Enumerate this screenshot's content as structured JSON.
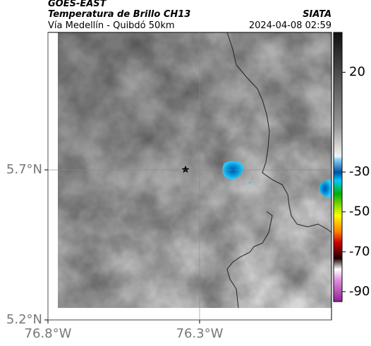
{
  "header": {
    "product": "GOES-EAST",
    "title": "Temperatura de Brillo CH13",
    "source": "SIATA",
    "subtitle": "Vía Medellín - Quibdó 50km",
    "datetime": "2024-04-08 02:59"
  },
  "map": {
    "xlim": [
      -76.8,
      -75.865
    ],
    "ylim": [
      5.2,
      6.158
    ],
    "xticks": [
      {
        "value": -76.8,
        "label": "76.8°W"
      },
      {
        "value": -76.3,
        "label": "76.3°W"
      }
    ],
    "yticks": [
      {
        "value": 5.2,
        "label": "5.2°N"
      },
      {
        "value": 5.7,
        "label": "5.7°N"
      }
    ]
  },
  "colorbar": {
    "lim": [
      -95,
      40
    ],
    "ticks": [
      20,
      -30,
      -50,
      -70,
      -90
    ]
  }
}
